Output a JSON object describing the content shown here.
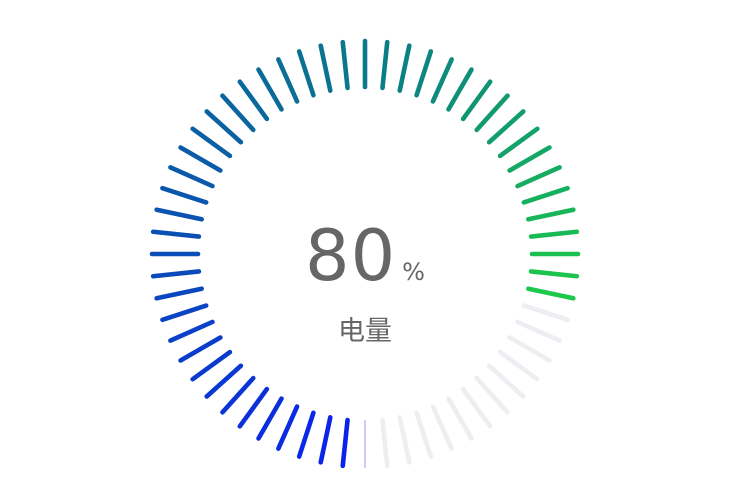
{
  "chart_data": {
    "type": "gauge",
    "value": 80,
    "max": 100,
    "value_text": "80",
    "unit": "%",
    "label": "电量",
    "tick_count": 60,
    "colors": {
      "gradient_start": "#0A1FF0",
      "gradient_mid": "#0A4FB5",
      "gradient_mid2": "#0A7E86",
      "gradient_end": "#1DC84A",
      "inactive": "#EDEDF2",
      "text": "#666666"
    }
  }
}
